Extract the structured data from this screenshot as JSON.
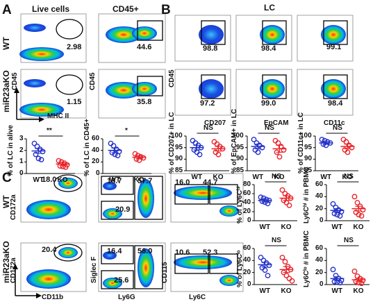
{
  "panels": {
    "A": {
      "letter": "A",
      "headers": [
        "Live cells",
        "CD45+"
      ],
      "row_labels": [
        "WT",
        "miR23aKO"
      ],
      "y_label": "CD45",
      "x_label": "MHC II",
      "gates": [
        [
          "2.98",
          "44.6"
        ],
        [
          "1.15",
          "35.8"
        ]
      ],
      "bar_charts": [
        {
          "ylabel": "% of LC in alive",
          "x_axis_label": "",
          "yticks": [
            "0",
            "1",
            "2",
            "3"
          ],
          "ylim": [
            0,
            3
          ],
          "sig": "**",
          "groups": [
            {
              "name": "WT",
              "mean": 1.95,
              "sem": 0.2,
              "color": "#2431c8",
              "points": [
                2.6,
                2.35,
                2.1,
                1.9,
                1.65,
                1.3,
                1.2
              ]
            },
            {
              "name": "KO",
              "mean": 0.82,
              "sem": 0.12,
              "color": "#e8242a",
              "points": [
                1.1,
                1.0,
                0.9,
                0.75,
                0.65,
                0.6,
                0.55
              ]
            }
          ]
        },
        {
          "ylabel": "% of LC in CD45+",
          "x_axis_label": "MHC II",
          "yticks": [
            "0",
            "20",
            "40",
            "60"
          ],
          "ylim": [
            0,
            60
          ],
          "sig": "*",
          "groups": [
            {
              "name": "WT",
              "mean": 40,
              "sem": 4,
              "color": "#2431c8",
              "points": [
                52,
                48,
                42,
                38,
                36,
                33,
                31
              ]
            },
            {
              "name": "KO",
              "mean": 28,
              "sem": 2.5,
              "color": "#e8242a",
              "points": [
                34,
                31,
                29,
                27,
                25,
                23
              ]
            }
          ]
        }
      ]
    },
    "B": {
      "letter": "B",
      "title": "LC",
      "y_label": "CD45",
      "x_labels": [
        "CD207",
        "EpCAM",
        "CD11c"
      ],
      "gates": [
        [
          "98.8",
          "98.4",
          "99.1"
        ],
        [
          "97.2",
          "99.0",
          "98.4"
        ]
      ],
      "bar_charts": [
        {
          "ylabel": "% of CD207+ in LC",
          "yticks": [
            "85",
            "90",
            "95",
            "100"
          ],
          "ylim": [
            85,
            100
          ],
          "sig": "NS",
          "groups": [
            {
              "name": "WT",
              "mean": 95,
              "sem": 1,
              "color": "#2431c8",
              "points": [
                98,
                97,
                96,
                95,
                94,
                93,
                92
              ]
            },
            {
              "name": "KO",
              "mean": 94.5,
              "sem": 1,
              "color": "#e8242a",
              "points": [
                97.5,
                96.5,
                95.5,
                94.5,
                93,
                92
              ]
            }
          ]
        },
        {
          "ylabel": "% of EpCAM+ in LC",
          "yticks": [
            "85",
            "90",
            "95",
            "100"
          ],
          "ylim": [
            85,
            100
          ],
          "sig": "NS",
          "groups": [
            {
              "name": "WT",
              "mean": 95.5,
              "sem": 1,
              "color": "#2431c8",
              "points": [
                98.5,
                97,
                96,
                95,
                94,
                93
              ]
            },
            {
              "name": "KO",
              "mean": 94.5,
              "sem": 1.5,
              "color": "#e8242a",
              "points": [
                98,
                97,
                95.5,
                94,
                93,
                91
              ]
            }
          ]
        },
        {
          "ylabel": "% of CD11c+ in LC",
          "yticks": [
            "85",
            "90",
            "95",
            "100"
          ],
          "ylim": [
            85,
            100
          ],
          "sig": "NS",
          "groups": [
            {
              "name": "WT",
              "mean": 97,
              "sem": 0.6,
              "color": "#2431c8",
              "points": [
                98.5,
                98,
                97.5,
                97,
                96.5,
                96
              ]
            },
            {
              "name": "KO",
              "mean": 95.5,
              "sem": 1,
              "color": "#e8242a",
              "points": [
                98.5,
                97.5,
                96,
                95,
                94,
                93
              ]
            }
          ]
        }
      ]
    },
    "C": {
      "letter": "C",
      "row_labels": [
        "WT",
        "miR23aKO"
      ],
      "y_labels": [
        "CD172a",
        "Siglec F",
        "CD115"
      ],
      "x_labels": [
        "CD11b",
        "Ly6G",
        "Ly6C"
      ],
      "gates": {
        "cd11b": [
          "18.0",
          "20.4"
        ],
        "ly6g": [
          [
            "18.7",
            "57.7",
            "20.9"
          ],
          [
            "16.4",
            "56.0",
            "25.6"
          ]
        ],
        "ly6c": [
          [
            "16.0",
            "44.7"
          ],
          [
            "10.6",
            "52.3"
          ]
        ]
      },
      "bar_charts": [
        {
          "ylabel": "% of Ly6Cʰⁱ",
          "yticks": [
            "0",
            "20",
            "40",
            "60",
            "80"
          ],
          "ylim": [
            0,
            80
          ],
          "sig": "NS",
          "groups": [
            {
              "name": "WT",
              "mean": 45,
              "sem": 3,
              "color": "#2431c8",
              "points": [
                52,
                50,
                47,
                45,
                43,
                41,
                38
              ]
            },
            {
              "name": "KO",
              "mean": 50,
              "sem": 5,
              "color": "#e8242a",
              "points": [
                68,
                60,
                55,
                50,
                45,
                40,
                34
              ]
            }
          ]
        },
        {
          "ylabel": "Ly6Cʰⁱ # in PBMC",
          "yticks": [
            "0",
            "20",
            "40",
            "60"
          ],
          "ylim": [
            0,
            60
          ],
          "sig": "NS",
          "groups": [
            {
              "name": "WT",
              "mean": 17,
              "sem": 3,
              "color": "#2431c8",
              "points": [
                28,
                22,
                18,
                15,
                12,
                10,
                8
              ]
            },
            {
              "name": "KO",
              "mean": 20,
              "sem": 4,
              "color": "#e8242a",
              "points": [
                40,
                30,
                24,
                18,
                14,
                10,
                8
              ]
            }
          ]
        },
        {
          "ylabel": "% of Ly6Cˡᵒ",
          "yticks": [
            "0",
            "20",
            "40",
            "60"
          ],
          "ylim": [
            0,
            60
          ],
          "sig": "NS",
          "groups": [
            {
              "name": "WT",
              "mean": 33,
              "sem": 4,
              "color": "#2431c8",
              "points": [
                45,
                40,
                36,
                32,
                28,
                24,
                15
              ]
            },
            {
              "name": "KO",
              "mean": 25,
              "sem": 5,
              "color": "#e8242a",
              "points": [
                45,
                38,
                30,
                25,
                20,
                15,
                10,
                6
              ]
            }
          ]
        },
        {
          "ylabel": "Ly6Cˡᵒ # in PBMC",
          "yticks": [
            "0",
            "20",
            "40",
            "60"
          ],
          "ylim": [
            0,
            60
          ],
          "sig": "NS",
          "groups": [
            {
              "name": "WT",
              "mean": 10,
              "sem": 3,
              "color": "#2431c8",
              "points": [
                25,
                15,
                10,
                7,
                5,
                4,
                3
              ]
            },
            {
              "name": "KO",
              "mean": 8,
              "sem": 2.5,
              "color": "#e8242a",
              "points": [
                22,
                14,
                10,
                7,
                5,
                3,
                2
              ]
            }
          ]
        }
      ]
    }
  }
}
